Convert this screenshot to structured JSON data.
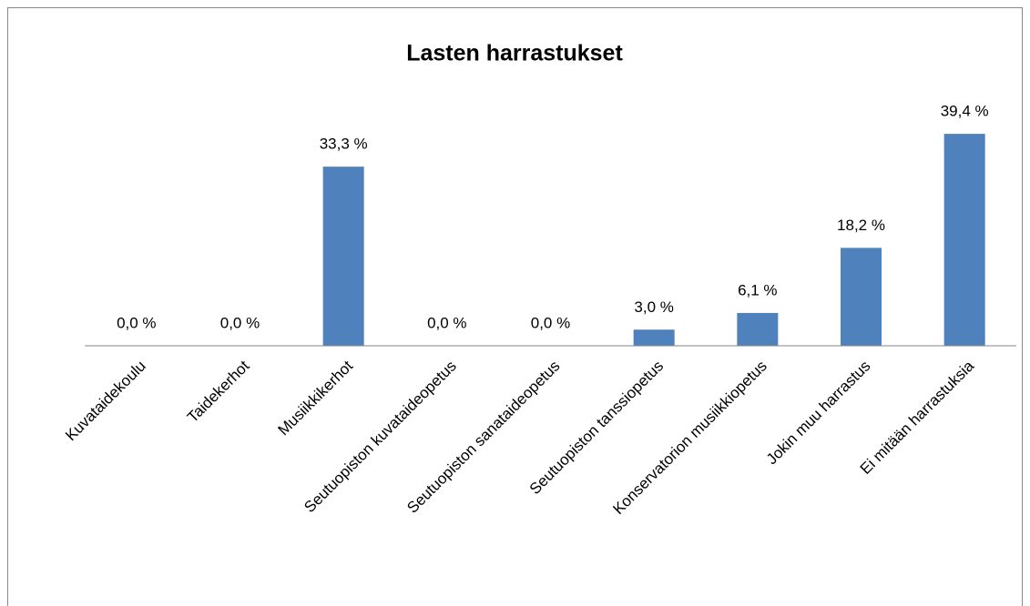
{
  "chart_data": {
    "type": "bar",
    "title": "Lasten harrastukset",
    "categories": [
      "Kuvataidekoulu",
      "Taidekerhot",
      "Musiikkikerhot",
      "Seutuopiston kuvataideopetus",
      "Seutuopiston sanataideopetus",
      "Seutuopiston tanssiopetus",
      "Konservatorion musiikkiopetus",
      "Jokin muu harrastus",
      "Ei mitään harrastuksia"
    ],
    "values": [
      0.0,
      0.0,
      33.3,
      0.0,
      0.0,
      3.0,
      6.1,
      18.2,
      39.4
    ],
    "value_labels": [
      "0,0 %",
      "0,0 %",
      "33,3 %",
      "0,0 %",
      "0,0 %",
      "3,0 %",
      "6,1 %",
      "18,2 %",
      "39,4 %"
    ],
    "color": "#4f81bd",
    "ylim": [
      0,
      45
    ]
  }
}
